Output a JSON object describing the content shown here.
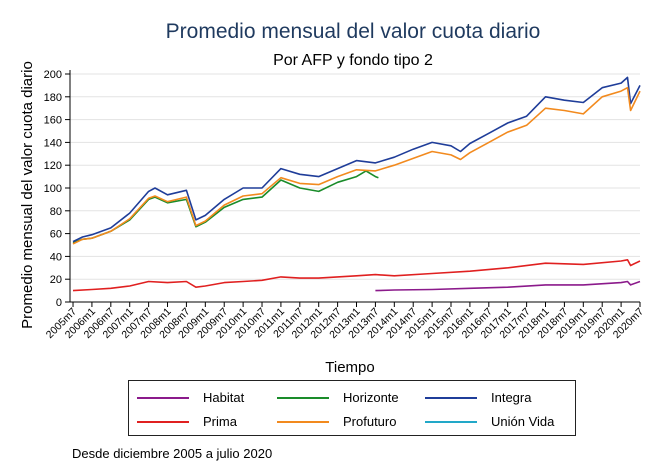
{
  "chart_data": {
    "type": "line",
    "title": "Promedio mensual del valor cuota diario",
    "subtitle": "Por AFP y fondo tipo 2",
    "xlabel": "Tiempo",
    "ylabel": "Promedio mensual del valor cuota diario",
    "ylim": [
      0,
      200
    ],
    "yticks": [
      0,
      20,
      40,
      60,
      80,
      100,
      120,
      140,
      160,
      180,
      200
    ],
    "xlim": [
      2005.42,
      2020.5
    ],
    "xtick_labels": [
      "2005m7",
      "2006m1",
      "2006m7",
      "2007m1",
      "2007m7",
      "2008m1",
      "2008m7",
      "2009m1",
      "2009m7",
      "2010m1",
      "2010m7",
      "2011m1",
      "2011m7",
      "2012m1",
      "2012m7",
      "2013m1",
      "2013m7",
      "2014m1",
      "2014m7",
      "2015m1",
      "2015m7",
      "2016m1",
      "2016m7",
      "2017m1",
      "2017m7",
      "2018m1",
      "2018m7",
      "2019m1",
      "2019m7",
      "2020m1",
      "2020m7"
    ],
    "grid": true,
    "legend_position": "bottom",
    "series": [
      {
        "name": "Habitat",
        "color": "#8b1a8b",
        "x": [
          2013.5,
          2014.0,
          2015.0,
          2016.0,
          2017.0,
          2018.0,
          2019.0,
          2020.0,
          2020.17,
          2020.25,
          2020.5
        ],
        "y": [
          10,
          10.5,
          11,
          12,
          13,
          15,
          15,
          17,
          18,
          15,
          18
        ]
      },
      {
        "name": "Horizonte",
        "color": "#1a8c2a",
        "x": [
          2005.5,
          2005.75,
          2006.0,
          2006.5,
          2007.0,
          2007.5,
          2007.67,
          2008.0,
          2008.5,
          2008.75,
          2009.0,
          2009.5,
          2010.0,
          2010.5,
          2011.0,
          2011.5,
          2012.0,
          2012.5,
          2013.0,
          2013.25,
          2013.5,
          2013.58
        ],
        "y": [
          52,
          55,
          56,
          62,
          72,
          90,
          92,
          87,
          90,
          66,
          70,
          83,
          90,
          92,
          107,
          100,
          97,
          105,
          110,
          115,
          110,
          109
        ]
      },
      {
        "name": "Integra",
        "color": "#1f3d99",
        "x": [
          2005.5,
          2005.75,
          2006.0,
          2006.5,
          2007.0,
          2007.5,
          2007.67,
          2008.0,
          2008.5,
          2008.75,
          2009.0,
          2009.5,
          2010.0,
          2010.5,
          2011.0,
          2011.5,
          2012.0,
          2012.5,
          2013.0,
          2013.5,
          2014.0,
          2014.5,
          2015.0,
          2015.5,
          2015.75,
          2016.0,
          2016.5,
          2017.0,
          2017.5,
          2018.0,
          2018.5,
          2019.0,
          2019.5,
          2020.0,
          2020.17,
          2020.25,
          2020.5
        ],
        "y": [
          53,
          57,
          59,
          65,
          78,
          97,
          100,
          94,
          98,
          72,
          76,
          90,
          100,
          100,
          117,
          112,
          110,
          117,
          124,
          122,
          127,
          134,
          140,
          137,
          132,
          139,
          148,
          157,
          163,
          180,
          177,
          175,
          188,
          192,
          197,
          174,
          190
        ]
      },
      {
        "name": "Prima",
        "color": "#e02020",
        "x": [
          2005.5,
          2006.0,
          2006.5,
          2007.0,
          2007.5,
          2008.0,
          2008.5,
          2008.75,
          2009.0,
          2009.5,
          2010.0,
          2010.5,
          2011.0,
          2011.5,
          2012.0,
          2012.5,
          2013.0,
          2013.5,
          2014.0,
          2015.0,
          2016.0,
          2017.0,
          2018.0,
          2019.0,
          2020.0,
          2020.17,
          2020.25,
          2020.5
        ],
        "y": [
          10,
          11,
          12,
          14,
          18,
          17,
          18,
          13,
          14,
          17,
          18,
          19,
          22,
          21,
          21,
          22,
          23,
          24,
          23,
          25,
          27,
          30,
          34,
          33,
          36,
          37,
          32,
          36
        ]
      },
      {
        "name": "Profuturo",
        "color": "#f28a1e",
        "x": [
          2005.5,
          2005.75,
          2006.0,
          2006.5,
          2007.0,
          2007.5,
          2007.67,
          2008.0,
          2008.5,
          2008.75,
          2009.0,
          2009.5,
          2010.0,
          2010.5,
          2011.0,
          2011.5,
          2012.0,
          2012.5,
          2013.0,
          2013.5,
          2014.0,
          2014.5,
          2015.0,
          2015.5,
          2015.75,
          2016.0,
          2016.5,
          2017.0,
          2017.5,
          2018.0,
          2018.5,
          2019.0,
          2019.5,
          2020.0,
          2020.17,
          2020.25,
          2020.5
        ],
        "y": [
          51,
          55,
          56,
          62,
          73,
          91,
          93,
          88,
          92,
          67,
          71,
          85,
          93,
          95,
          109,
          104,
          103,
          110,
          116,
          115,
          120,
          126,
          132,
          129,
          125,
          131,
          140,
          149,
          155,
          170,
          168,
          165,
          180,
          185,
          188,
          168,
          185
        ]
      },
      {
        "name": "Unión Vida",
        "color": "#22a8c8",
        "x": [],
        "y": []
      }
    ]
  },
  "footnote": "Desde diciembre 2005 a julio 2020"
}
